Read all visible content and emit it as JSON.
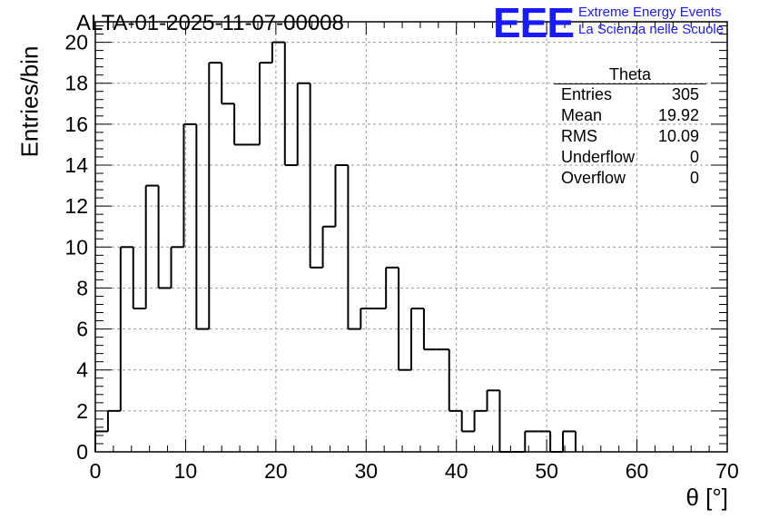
{
  "chart_data": {
    "type": "bar",
    "title": "ALTA-01-2025-11-07-00008",
    "xlabel": "θ [°]",
    "ylabel": "Entries/bin",
    "xlim": [
      0,
      70
    ],
    "ylim": [
      0,
      21
    ],
    "grid": true,
    "bin_width": 1.4,
    "bin_edges_start": 0,
    "values": [
      1,
      2,
      10,
      7,
      13,
      8,
      10,
      16,
      6,
      19,
      17,
      15,
      15,
      19,
      20,
      14,
      18,
      9,
      11,
      14,
      6,
      7,
      7,
      9,
      4,
      7,
      5,
      5,
      2,
      1,
      2,
      3,
      0,
      0,
      1,
      1,
      0,
      1
    ],
    "xticks": [
      0,
      10,
      20,
      30,
      40,
      50,
      60,
      70
    ],
    "yticks": [
      0,
      2,
      4,
      6,
      8,
      10,
      12,
      14,
      16,
      18,
      20
    ],
    "stats_box": {
      "name": "Theta",
      "rows": [
        {
          "label": "Entries",
          "value": "305"
        },
        {
          "label": "Mean",
          "value": "19.92"
        },
        {
          "label": "RMS",
          "value": "10.09"
        },
        {
          "label": "Underflow",
          "value": "0"
        },
        {
          "label": "Overflow",
          "value": "0"
        }
      ]
    }
  },
  "logo": {
    "mark": "EEE",
    "line1": "Extreme Energy Events",
    "line2": "La Scienza nelle Scuole",
    "color": "#1a1aff"
  }
}
